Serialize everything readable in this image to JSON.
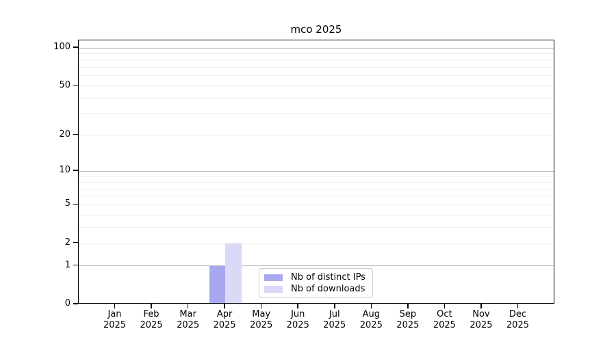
{
  "chart_data": {
    "type": "bar",
    "title": "mco 2025",
    "x_tick_months": [
      "Jan",
      "Feb",
      "Mar",
      "Apr",
      "May",
      "Jun",
      "Jul",
      "Aug",
      "Sep",
      "Oct",
      "Nov",
      "Dec"
    ],
    "x_tick_year": "2025",
    "series": [
      {
        "name": "Nb of distinct IPs",
        "color": "#a8a8f0",
        "values": [
          0,
          0,
          0,
          1,
          0,
          0,
          0,
          0,
          0,
          0,
          0,
          0
        ]
      },
      {
        "name": "Nb of downloads",
        "color": "#dadaf8",
        "values": [
          0,
          0,
          0,
          2,
          0,
          0,
          0,
          0,
          0,
          0,
          0,
          0
        ]
      }
    ],
    "yscale": "log1p",
    "ylim": [
      0,
      115
    ],
    "yticks": [
      0,
      1,
      2,
      5,
      10,
      20,
      50,
      100
    ],
    "grid": {
      "major_lines": [
        1,
        10,
        100
      ],
      "minor_lines": [
        2,
        3,
        4,
        5,
        6,
        7,
        8,
        9,
        20,
        30,
        40,
        50,
        60,
        70,
        80,
        90
      ]
    },
    "legend": {
      "position": "lower-center"
    }
  },
  "colors": {
    "background": "#ffffff",
    "spine": "#000000",
    "major_grid": "#b9b9b9",
    "minor_grid": "#ededed",
    "legend_border": "#cccccc",
    "bar_distinct_ips": "#a8a8f0",
    "bar_downloads": "#dadaf8"
  }
}
